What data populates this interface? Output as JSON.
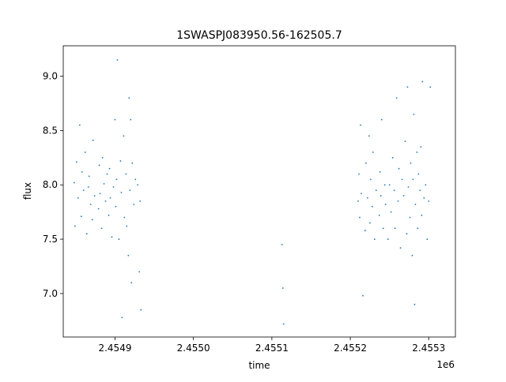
{
  "chart_data": {
    "type": "scatter",
    "title": "1SWASPJ083950.56-162505.7",
    "xlabel": "time",
    "ylabel": "flux",
    "x_offset_label": "1e6",
    "xlim": [
      2454834,
      2455334
    ],
    "ylim": [
      6.6,
      9.28
    ],
    "x_ticks": [
      2454900,
      2455000,
      2455100,
      2455200,
      2455300
    ],
    "x_tick_labels": [
      "2.4549",
      "2.4550",
      "2.4551",
      "2.4552",
      "2.4553"
    ],
    "y_ticks": [
      7.0,
      7.5,
      8.0,
      8.5,
      9.0
    ],
    "y_tick_labels": [
      "7.0",
      "7.5",
      "8.0",
      "8.5",
      "9.0"
    ],
    "grid": false,
    "marker_color": "#1f77b4",
    "series": [
      {
        "points": [
          [
            2454848,
            8.02
          ],
          [
            2454849,
            7.62
          ],
          [
            2454851,
            8.21
          ],
          [
            2454853,
            7.88
          ],
          [
            2454855,
            8.55
          ],
          [
            2454857,
            7.71
          ],
          [
            2454858,
            8.12
          ],
          [
            2454860,
            7.95
          ],
          [
            2454862,
            8.3
          ],
          [
            2454864,
            7.55
          ],
          [
            2454866,
            7.98
          ],
          [
            2454867,
            8.08
          ],
          [
            2454869,
            7.82
          ],
          [
            2454871,
            7.68
          ],
          [
            2454872,
            8.41
          ],
          [
            2454874,
            7.9
          ],
          [
            2454879,
            7.78
          ],
          [
            2454880,
            8.18
          ],
          [
            2454881,
            7.92
          ],
          [
            2454883,
            7.6
          ],
          [
            2454884,
            8.25
          ],
          [
            2454886,
            8.01
          ],
          [
            2454888,
            7.85
          ],
          [
            2454890,
            8.1
          ],
          [
            2454892,
            7.72
          ],
          [
            2454893,
            8.15
          ],
          [
            2454894,
            7.88
          ],
          [
            2454896,
            7.52
          ],
          [
            2454898,
            7.98
          ],
          [
            2454900,
            8.6
          ],
          [
            2454901,
            7.8
          ],
          [
            2454902,
            8.05
          ],
          [
            2454903,
            9.15
          ],
          [
            2454905,
            7.5
          ],
          [
            2454907,
            8.22
          ],
          [
            2454908,
            7.93
          ],
          [
            2454909,
            6.78
          ],
          [
            2454911,
            8.45
          ],
          [
            2454912,
            7.7
          ],
          [
            2454914,
            8.1
          ],
          [
            2454915,
            7.62
          ],
          [
            2454917,
            7.35
          ],
          [
            2454918,
            8.8
          ],
          [
            2454919,
            7.95
          ],
          [
            2454920,
            8.6
          ],
          [
            2454921,
            7.1
          ],
          [
            2454922,
            8.2
          ],
          [
            2454924,
            7.82
          ],
          [
            2454926,
            8.05
          ],
          [
            2454929,
            8.0
          ],
          [
            2454931,
            7.2
          ],
          [
            2454932,
            7.85
          ],
          [
            2454933,
            6.85
          ],
          [
            2455113,
            7.45
          ],
          [
            2455114,
            7.05
          ],
          [
            2455115,
            6.72
          ],
          [
            2455210,
            7.85
          ],
          [
            2455211,
            8.1
          ],
          [
            2455212,
            7.7
          ],
          [
            2455213,
            8.55
          ],
          [
            2455214,
            7.92
          ],
          [
            2455216,
            6.98
          ],
          [
            2455219,
            7.58
          ],
          [
            2455220,
            8.2
          ],
          [
            2455222,
            7.88
          ],
          [
            2455224,
            8.45
          ],
          [
            2455225,
            7.65
          ],
          [
            2455226,
            8.05
          ],
          [
            2455228,
            7.8
          ],
          [
            2455229,
            8.3
          ],
          [
            2455231,
            7.5
          ],
          [
            2455233,
            7.95
          ],
          [
            2455237,
            7.72
          ],
          [
            2455238,
            8.12
          ],
          [
            2455239,
            7.9
          ],
          [
            2455240,
            8.6
          ],
          [
            2455242,
            7.6
          ],
          [
            2455244,
            8.0
          ],
          [
            2455245,
            7.82
          ],
          [
            2455248,
            7.5
          ],
          [
            2455250,
            8.0
          ],
          [
            2455252,
            7.75
          ],
          [
            2455254,
            8.25
          ],
          [
            2455256,
            7.95
          ],
          [
            2455257,
            7.6
          ],
          [
            2455259,
            8.8
          ],
          [
            2455261,
            7.85
          ],
          [
            2455262,
            8.15
          ],
          [
            2455264,
            7.42
          ],
          [
            2455266,
            8.05
          ],
          [
            2455268,
            7.9
          ],
          [
            2455270,
            8.4
          ],
          [
            2455272,
            7.55
          ],
          [
            2455273,
            8.9
          ],
          [
            2455274,
            7.98
          ],
          [
            2455276,
            7.7
          ],
          [
            2455277,
            8.2
          ],
          [
            2455279,
            7.35
          ],
          [
            2455280,
            8.05
          ],
          [
            2455281,
            8.65
          ],
          [
            2455282,
            6.9
          ],
          [
            2455283,
            7.82
          ],
          [
            2455285,
            8.3
          ],
          [
            2455286,
            7.6
          ],
          [
            2455287,
            8.1
          ],
          [
            2455289,
            7.95
          ],
          [
            2455290,
            8.35
          ],
          [
            2455291,
            7.72
          ],
          [
            2455292,
            8.95
          ],
          [
            2455294,
            7.88
          ],
          [
            2455296,
            8.0
          ],
          [
            2455298,
            7.5
          ],
          [
            2455300,
            7.85
          ],
          [
            2455302,
            8.9
          ]
        ]
      }
    ]
  }
}
